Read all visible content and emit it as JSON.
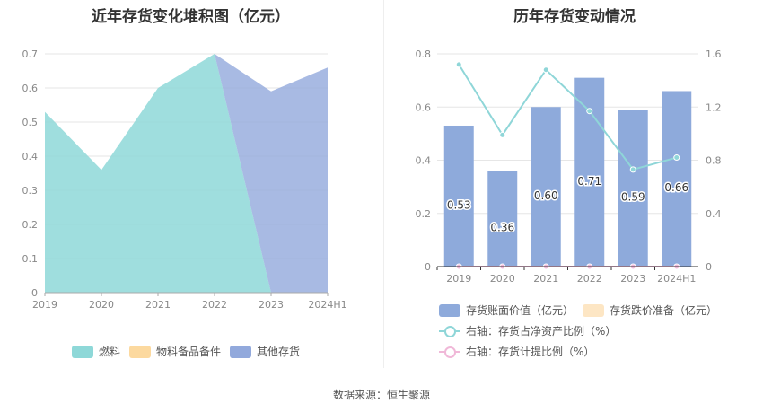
{
  "left_title": "近年存货变化堆积图（亿元）",
  "right_title": "历年存货变动情况",
  "source": "数据来源：恒生聚源",
  "chart_data": [
    {
      "type": "area",
      "title": "近年存货变化堆积图（亿元）",
      "categories": [
        "2019",
        "2020",
        "2021",
        "2022",
        "2023",
        "2024H1"
      ],
      "y_ticks": [
        "0",
        "0.1",
        "0.2",
        "0.3",
        "0.4",
        "0.5",
        "0.6",
        "0.7"
      ],
      "ylim": [
        0,
        0.75
      ],
      "series": [
        {
          "name": "燃料",
          "color": "#8ed8d8",
          "values": [
            0.53,
            0.36,
            0.6,
            0.7,
            0.0,
            0.0
          ]
        },
        {
          "name": "物料备品备件",
          "color": "#fcd99f",
          "values": [
            0,
            0,
            0,
            0,
            0,
            0
          ]
        },
        {
          "name": "其他存货",
          "color": "#92a9dc",
          "values": [
            0.0,
            0.0,
            0.0,
            0.0,
            0.59,
            0.66
          ]
        }
      ],
      "legend_position": "bottom",
      "grid": true
    },
    {
      "type": "bar",
      "title": "历年存货变动情况",
      "categories": [
        "2019",
        "2020",
        "2021",
        "2022",
        "2023",
        "2024H1"
      ],
      "left_ticks": [
        "0",
        "0.2",
        "0.4",
        "0.6",
        "0.8"
      ],
      "right_ticks": [
        "0",
        "0.4",
        "0.8",
        "1.2",
        "1.6"
      ],
      "ylim_left": [
        0,
        0.8
      ],
      "ylim_right": [
        0,
        1.6
      ],
      "series": [
        {
          "name": "存货账面价值（亿元）",
          "color": "#8eaadb",
          "kind": "bar",
          "axis": "left",
          "values": [
            0.53,
            0.36,
            0.6,
            0.71,
            0.59,
            0.66
          ],
          "labels": [
            "0.53",
            "0.36",
            "0.60",
            "0.71",
            "0.59",
            "0.66"
          ]
        },
        {
          "name": "存货跌价准备（亿元）",
          "color": "#fde6c4",
          "kind": "bar",
          "axis": "left",
          "values": [
            0,
            0,
            0,
            0,
            0,
            0
          ]
        },
        {
          "name": "右轴：存货占净资产比例（%）",
          "color": "#8fd6d8",
          "kind": "line",
          "axis": "right",
          "values": [
            1.52,
            0.99,
            1.48,
            1.17,
            0.73,
            0.82
          ]
        },
        {
          "name": "右轴：存货计提比例（%）",
          "color": "#f0b8d8",
          "kind": "line",
          "axis": "right",
          "values": [
            0,
            0,
            0,
            0,
            0,
            0
          ]
        }
      ],
      "legend_position": "bottom",
      "grid": true
    }
  ]
}
